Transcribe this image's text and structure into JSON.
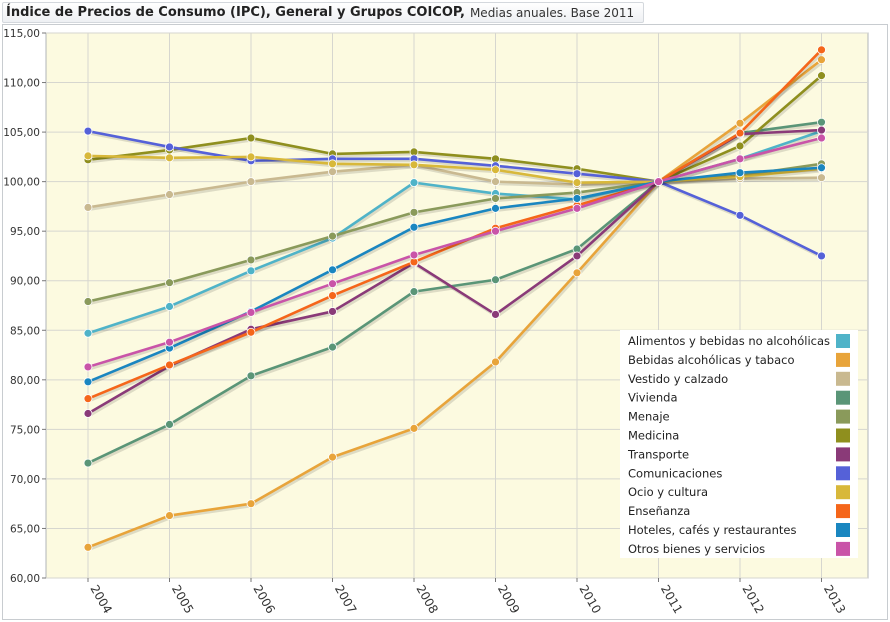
{
  "header": {
    "title": "Índice de Precios de Consumo (IPC), General y Grupos COICOP,",
    "subtitle": "Medias anuales. Base 2011"
  },
  "chart_data": {
    "type": "line",
    "title": "Índice de Precios de Consumo (IPC), General y Grupos COICOP,",
    "subtitle": "Medias anuales. Base 2011",
    "xlabel": "",
    "ylabel": "",
    "ylim": [
      60,
      115
    ],
    "grid": true,
    "legend_position": "bottom-right",
    "x": [
      "2004",
      "2005",
      "2006",
      "2007",
      "2008",
      "2009",
      "2010",
      "2011",
      "2012",
      "2013"
    ],
    "y_ticks": [
      "60,00",
      "65,00",
      "70,00",
      "75,00",
      "80,00",
      "85,00",
      "90,00",
      "95,00",
      "100,00",
      "105,00",
      "110,00",
      "115,00"
    ],
    "series": [
      {
        "name": "Alimentos y bebidas no alcohólicas",
        "color": "#4fb3c8",
        "values": [
          84.7,
          87.4,
          91.0,
          94.3,
          99.9,
          98.8,
          98.2,
          100.0,
          102.3,
          105.1
        ]
      },
      {
        "name": "Bebidas alcohólicas y tabaco",
        "color": "#e8a43a",
        "values": [
          63.1,
          66.3,
          67.5,
          72.2,
          75.1,
          81.8,
          90.8,
          100.0,
          105.9,
          112.3
        ]
      },
      {
        "name": "Vestido y calzado",
        "color": "#c9b990",
        "values": [
          97.4,
          98.7,
          100.0,
          101.0,
          101.7,
          100.0,
          99.7,
          100.0,
          100.3,
          100.4
        ]
      },
      {
        "name": "Vivienda",
        "color": "#5a9577",
        "values": [
          71.6,
          75.5,
          80.4,
          83.3,
          88.9,
          90.1,
          93.2,
          100.0,
          104.9,
          106.0
        ]
      },
      {
        "name": "Menaje",
        "color": "#8a9a5b",
        "values": [
          87.9,
          89.8,
          92.1,
          94.5,
          96.9,
          98.3,
          98.9,
          100.0,
          100.6,
          101.8
        ]
      },
      {
        "name": "Medicina",
        "color": "#8f8f1e",
        "values": [
          102.2,
          103.2,
          104.4,
          102.8,
          103.0,
          102.3,
          101.3,
          100.0,
          103.6,
          110.7
        ]
      },
      {
        "name": "Transporte",
        "color": "#8a3a78",
        "values": [
          76.6,
          81.4,
          85.1,
          86.9,
          91.8,
          86.6,
          92.5,
          100.0,
          104.8,
          105.2
        ]
      },
      {
        "name": "Comunicaciones",
        "color": "#5561d8",
        "values": [
          105.1,
          103.5,
          102.1,
          102.3,
          102.3,
          101.6,
          100.8,
          100.0,
          96.6,
          92.5
        ]
      },
      {
        "name": "Ocio y cultura",
        "color": "#d8b83a",
        "values": [
          102.6,
          102.4,
          102.5,
          101.8,
          101.7,
          101.2,
          99.9,
          100.0,
          100.5,
          101.3
        ]
      },
      {
        "name": "Enseñanza",
        "color": "#f5661a",
        "values": [
          78.1,
          81.5,
          84.8,
          88.5,
          91.9,
          95.3,
          97.6,
          100.0,
          104.9,
          113.3
        ]
      },
      {
        "name": "Hoteles, cafés y restaurantes",
        "color": "#1a86c0",
        "values": [
          79.8,
          83.2,
          86.9,
          91.1,
          95.4,
          97.3,
          98.3,
          100.0,
          100.9,
          101.4
        ]
      },
      {
        "name": "Otros bienes y servicios",
        "color": "#c954a8",
        "values": [
          81.3,
          83.8,
          86.8,
          89.7,
          92.6,
          95.0,
          97.3,
          100.0,
          102.3,
          104.4
        ]
      }
    ]
  }
}
